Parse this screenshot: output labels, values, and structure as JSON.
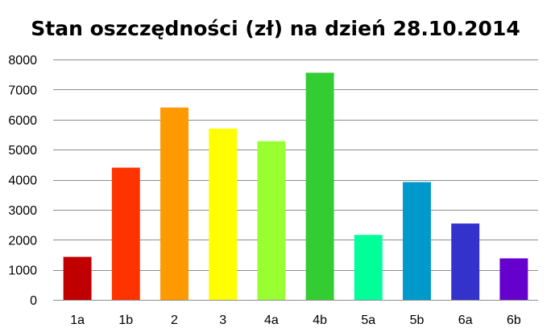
{
  "chart_data": {
    "type": "bar",
    "title": "Stan oszczędności (zł) na dzień 28.10.2014",
    "xlabel": "",
    "ylabel": "",
    "categories": [
      "1a",
      "1b",
      "2",
      "3",
      "4a",
      "4b",
      "5a",
      "5b",
      "6a",
      "6b"
    ],
    "values": [
      1430,
      4400,
      6400,
      5700,
      5280,
      7560,
      2160,
      3920,
      2540,
      1380
    ],
    "colors": [
      "#c00000",
      "#ff3300",
      "#ff9900",
      "#ffff00",
      "#99ff33",
      "#33cc33",
      "#00ff99",
      "#0099cc",
      "#3333cc",
      "#6600cc"
    ],
    "ylim": [
      0,
      8000
    ],
    "yticks": [
      0,
      1000,
      2000,
      3000,
      4000,
      5000,
      6000,
      7000,
      8000
    ],
    "grid": true,
    "legend": "none"
  }
}
